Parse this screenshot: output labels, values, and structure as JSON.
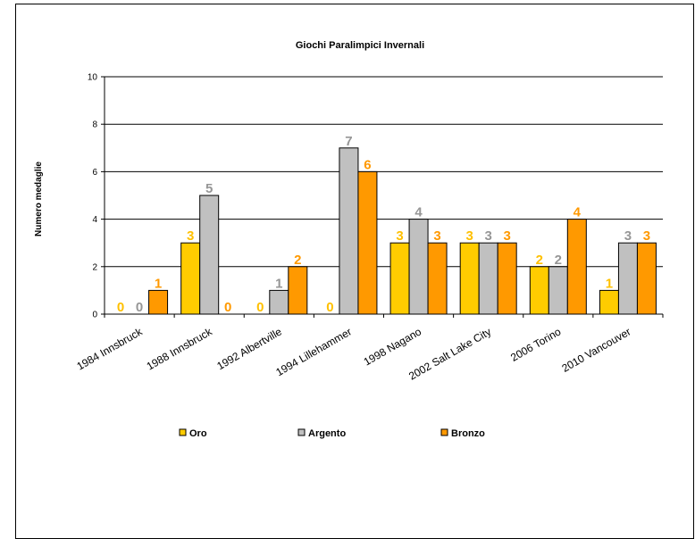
{
  "chart_data": {
    "type": "bar",
    "title": "Giochi Paralimpici Invernali",
    "ylabel": "Numero medaglie",
    "xlabel": "",
    "ylim": [
      0,
      10
    ],
    "yticks": [
      0,
      2,
      4,
      6,
      8,
      10
    ],
    "grid": true,
    "legend_position": "bottom",
    "categories": [
      "1984 Innsbruck",
      "1988 Innsbruck",
      "1992 Albertville",
      "1994 Lillehammer",
      "1998 Nagano",
      "2002 Salt Lake City",
      "2006 Torino",
      "2010 Vancouver"
    ],
    "series": [
      {
        "name": "Oro",
        "values": [
          0,
          3,
          0,
          0,
          3,
          3,
          2,
          1
        ],
        "color": "#FFCC00",
        "label_color": "#FFC000"
      },
      {
        "name": "Argento",
        "values": [
          0,
          5,
          1,
          7,
          4,
          3,
          2,
          3
        ],
        "color": "#C0C0C0",
        "label_color": "#969696"
      },
      {
        "name": "Bronzo",
        "values": [
          1,
          0,
          2,
          6,
          3,
          3,
          4,
          3
        ],
        "color": "#FF9900",
        "label_color": "#FF9900"
      }
    ]
  }
}
